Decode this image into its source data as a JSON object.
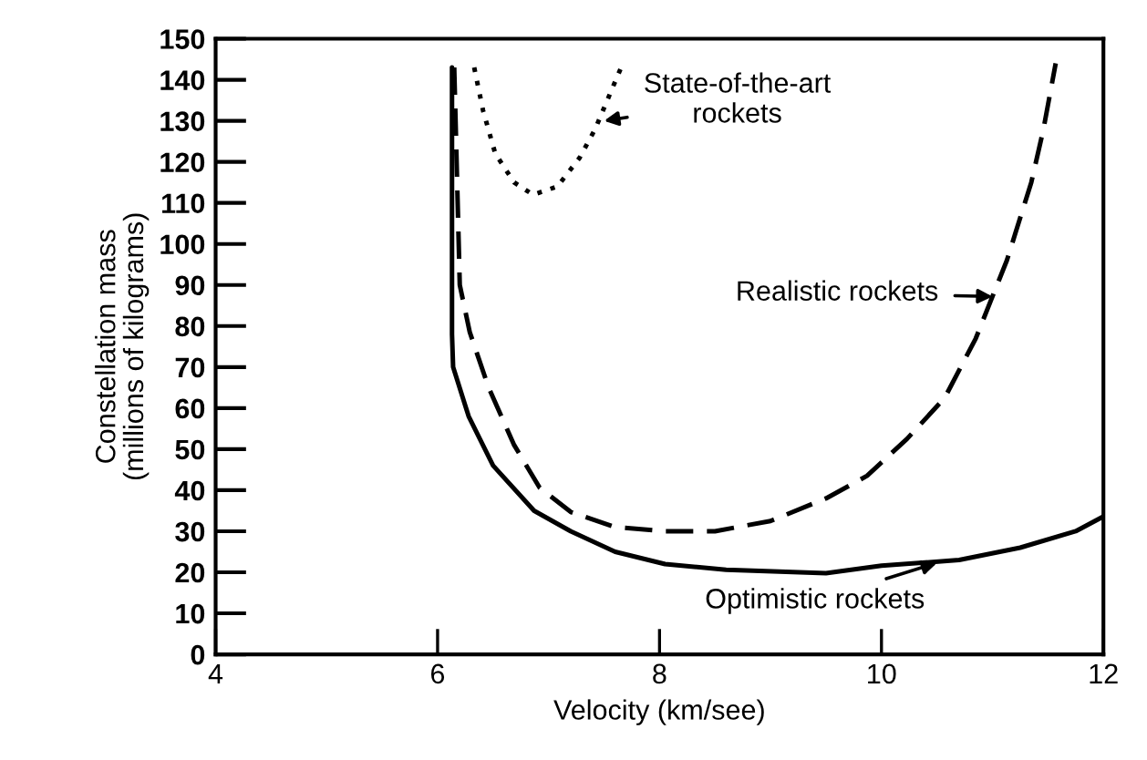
{
  "chart_data": {
    "type": "line",
    "xlabel": "Velocity (km/see)",
    "ylabel": "Constellation mass\n(millions of kilograms)",
    "xlim": [
      4,
      12
    ],
    "xticks": [
      4,
      6,
      8,
      10,
      12
    ],
    "ylim": [
      0,
      150
    ],
    "yticks": [
      0,
      10,
      20,
      30,
      40,
      50,
      60,
      70,
      80,
      90,
      100,
      110,
      120,
      130,
      140,
      150
    ],
    "grid": false,
    "marker": "none",
    "series": [
      {
        "color": "#000000",
        "line_style": "solid",
        "x": [
          6.13,
          6.13,
          6.14,
          6.28,
          6.5,
          6.87,
          7.2,
          7.6,
          8.05,
          8.6,
          9.5,
          10.0,
          10.7,
          11.25,
          11.75,
          12.0
        ],
        "values": [
          143,
          78,
          70,
          58,
          46,
          35,
          30,
          25,
          22,
          20.6,
          19.8,
          21.6,
          23,
          26,
          30,
          33.6
        ]
      },
      {
        "color": "#000000",
        "line_style": "dashed",
        "x": [
          6.15,
          6.2,
          6.29,
          6.46,
          6.69,
          6.92,
          7.2,
          7.6,
          8.05,
          8.5,
          9.0,
          9.5,
          9.87,
          10.23,
          10.57,
          10.85,
          11.13,
          11.35,
          11.46,
          11.57
        ],
        "values": [
          143,
          90,
          78.5,
          65,
          51,
          40.6,
          34.7,
          31,
          30,
          30,
          32.5,
          38,
          43.5,
          52.5,
          62.5,
          77,
          96,
          115,
          128,
          144
        ]
      },
      {
        "color": "#000000",
        "line_style": "dotted",
        "x": [
          6.33,
          6.41,
          6.52,
          6.69,
          6.86,
          7.08,
          7.28,
          7.42,
          7.56,
          7.67
        ],
        "values": [
          143,
          132.5,
          122,
          115,
          112,
          114,
          121,
          128,
          137,
          144
        ]
      }
    ],
    "annotations": [
      {
        "text": "State-of-the-art\nrockets",
        "x": 7.5,
        "y": 130
      },
      {
        "text": "Realistic rockets",
        "x": 11.0,
        "y": 87.2
      },
      {
        "text": "Optimistic rockets",
        "x": 10.5,
        "y": 22.3
      }
    ]
  }
}
